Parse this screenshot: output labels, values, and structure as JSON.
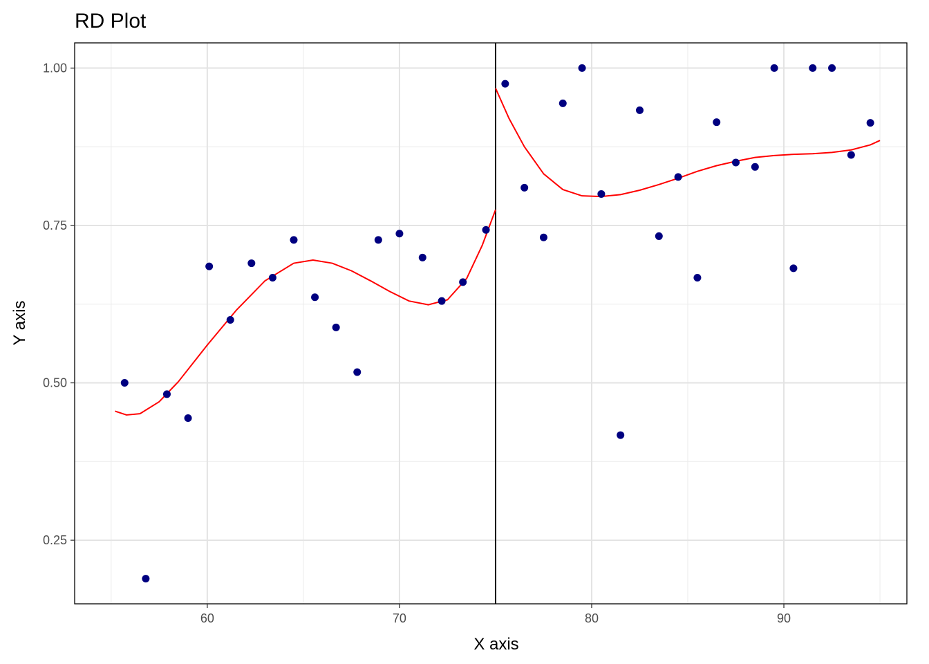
{
  "chart_data": {
    "type": "scatter",
    "title": "RD Plot",
    "xlabel": "X axis",
    "ylabel": "Y axis",
    "xlim": [
      53.1,
      96.4
    ],
    "ylim": [
      0.149,
      1.04
    ],
    "x_ticks": [
      60,
      70,
      80,
      90
    ],
    "x_tick_labels": [
      "60",
      "70",
      "80",
      "90"
    ],
    "x_minor_ticks": [
      55,
      65,
      75,
      85,
      95
    ],
    "y_ticks": [
      0.25,
      0.5,
      0.75,
      1.0
    ],
    "y_tick_labels": [
      "0.25",
      "0.50",
      "0.75",
      "1.00"
    ],
    "y_minor_ticks": [
      0.375,
      0.625,
      0.875
    ],
    "grid": true,
    "legend": "none",
    "cutoff": 75,
    "points": {
      "color": "#000080",
      "x": [
        55.7,
        56.8,
        57.9,
        59.0,
        60.1,
        61.2,
        62.3,
        63.4,
        64.5,
        65.6,
        66.7,
        67.8,
        68.9,
        70.0,
        71.2,
        72.2,
        73.3,
        74.5,
        75.5,
        76.5,
        77.5,
        78.5,
        79.5,
        80.5,
        81.5,
        82.5,
        83.5,
        84.5,
        85.5,
        86.5,
        87.5,
        88.5,
        89.5,
        90.5,
        91.5,
        92.5,
        93.5,
        94.5
      ],
      "y": [
        0.5,
        0.189,
        0.482,
        0.444,
        0.685,
        0.6,
        0.69,
        0.667,
        0.727,
        0.636,
        0.588,
        0.517,
        0.727,
        0.737,
        0.699,
        0.63,
        0.66,
        0.743,
        0.975,
        0.81,
        0.731,
        0.944,
        1.0,
        0.8,
        0.417,
        0.933,
        0.733,
        0.827,
        0.667,
        0.914,
        0.85,
        0.843,
        1.0,
        0.682,
        1.0,
        1.0,
        0.862,
        0.913
      ]
    },
    "fit_left": {
      "color": "#ff0000",
      "x": [
        55.2,
        55.8,
        56.5,
        57.5,
        58.5,
        60.0,
        61.5,
        63.0,
        64.5,
        65.5,
        66.5,
        67.5,
        68.5,
        69.5,
        70.5,
        71.5,
        72.5,
        73.5,
        74.3,
        75.0
      ],
      "y": [
        0.455,
        0.449,
        0.451,
        0.47,
        0.502,
        0.56,
        0.615,
        0.662,
        0.69,
        0.695,
        0.69,
        0.678,
        0.662,
        0.645,
        0.63,
        0.624,
        0.632,
        0.666,
        0.718,
        0.775
      ]
    },
    "fit_right": {
      "color": "#ff0000",
      "x": [
        75.0,
        75.7,
        76.5,
        77.5,
        78.5,
        79.5,
        80.5,
        81.5,
        82.5,
        83.5,
        84.5,
        85.5,
        86.5,
        87.5,
        88.5,
        89.5,
        90.5,
        91.5,
        92.5,
        93.5,
        94.5,
        95.0
      ],
      "y": [
        0.968,
        0.92,
        0.875,
        0.832,
        0.807,
        0.797,
        0.796,
        0.799,
        0.806,
        0.815,
        0.825,
        0.836,
        0.845,
        0.852,
        0.858,
        0.861,
        0.863,
        0.864,
        0.866,
        0.87,
        0.878,
        0.885
      ]
    }
  }
}
